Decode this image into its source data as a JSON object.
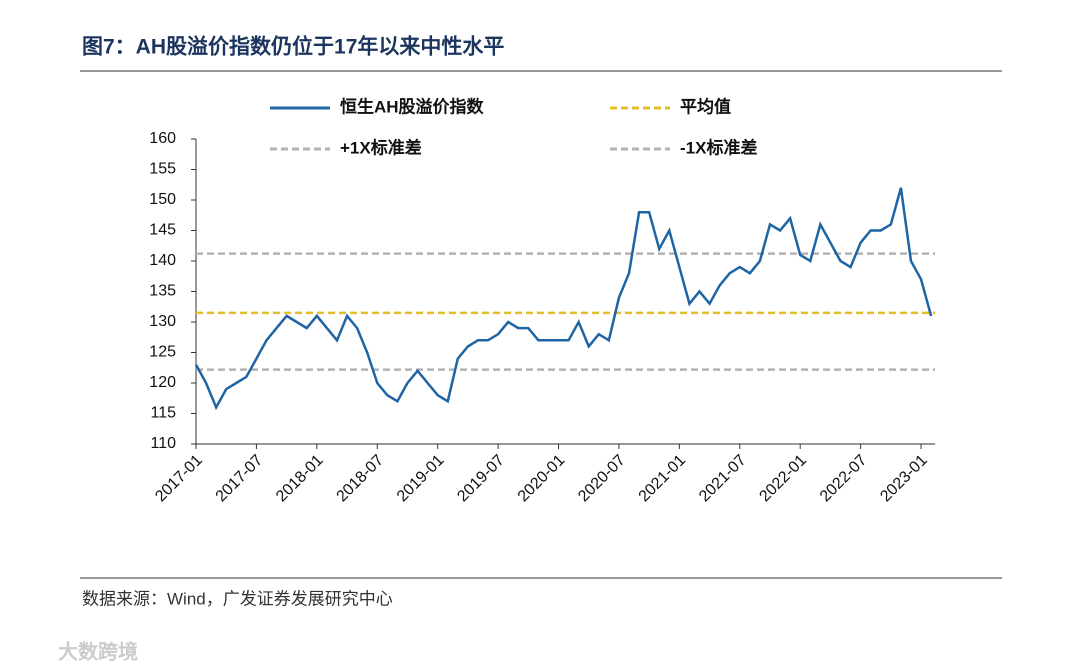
{
  "chart_data": {
    "type": "line",
    "title": "图7：AH股溢价指数仍位于17年以来中性水平",
    "source": "数据来源：Wind，广发证券发展研究中心",
    "watermark": "大数跨境",
    "x": [
      "2017-01",
      "2017-02",
      "2017-03",
      "2017-04",
      "2017-05",
      "2017-06",
      "2017-07",
      "2017-08",
      "2017-09",
      "2017-10",
      "2017-11",
      "2017-12",
      "2018-01",
      "2018-02",
      "2018-03",
      "2018-04",
      "2018-05",
      "2018-06",
      "2018-07",
      "2018-08",
      "2018-09",
      "2018-10",
      "2018-11",
      "2018-12",
      "2019-01",
      "2019-02",
      "2019-03",
      "2019-04",
      "2019-05",
      "2019-06",
      "2019-07",
      "2019-08",
      "2019-09",
      "2019-10",
      "2019-11",
      "2019-12",
      "2020-01",
      "2020-02",
      "2020-03",
      "2020-04",
      "2020-05",
      "2020-06",
      "2020-07",
      "2020-08",
      "2020-09",
      "2020-10",
      "2020-11",
      "2020-12",
      "2021-01",
      "2021-02",
      "2021-03",
      "2021-04",
      "2021-05",
      "2021-06",
      "2021-07",
      "2021-08",
      "2021-09",
      "2021-10",
      "2021-11",
      "2021-12",
      "2022-01",
      "2022-02",
      "2022-03",
      "2022-04",
      "2022-05",
      "2022-06",
      "2022-07",
      "2022-08",
      "2022-09",
      "2022-10",
      "2022-11",
      "2022-12",
      "2023-01",
      "2023-02"
    ],
    "xticks": [
      "2017-01",
      "2017-07",
      "2018-01",
      "2018-07",
      "2019-01",
      "2019-07",
      "2020-01",
      "2020-07",
      "2021-01",
      "2021-07",
      "2022-01",
      "2022-07",
      "2023-01"
    ],
    "series": [
      {
        "name": "恒生AH股溢价指数",
        "color": "#1f64a3",
        "values": [
          123,
          120,
          116,
          119,
          120,
          121,
          124,
          127,
          129,
          131,
          130,
          129,
          131,
          129,
          127,
          131,
          129,
          125,
          120,
          118,
          117,
          120,
          122,
          120,
          118,
          117,
          124,
          126,
          127,
          127,
          128,
          130,
          129,
          129,
          127,
          127,
          127,
          127,
          130,
          126,
          128,
          127,
          134,
          138,
          148,
          148,
          142,
          145,
          139,
          133,
          135,
          133,
          136,
          138,
          139,
          138,
          140,
          146,
          145,
          147,
          141,
          140,
          146,
          143,
          140,
          139,
          143,
          145,
          145,
          146,
          152,
          140,
          137,
          131
        ]
      }
    ],
    "reference_lines": [
      {
        "name": "平均值",
        "color": "#e3bf2e",
        "value": 131.5
      },
      {
        "name": "+1X标准差",
        "color": "#b3b3b3",
        "value": 141.2
      },
      {
        "name": "-1X标准差",
        "color": "#b3b3b3",
        "value": 122.2
      }
    ],
    "ylim": [
      110,
      160
    ],
    "yticks": [
      110,
      115,
      120,
      125,
      130,
      135,
      140,
      145,
      150,
      155,
      160
    ]
  }
}
